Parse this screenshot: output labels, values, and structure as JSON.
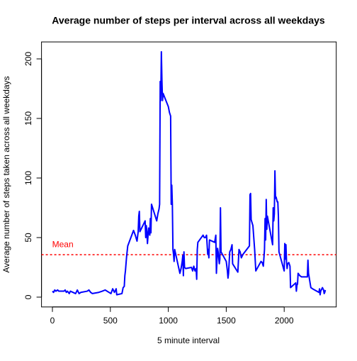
{
  "chart_data": {
    "type": "line",
    "title": "Average number of steps per interval across all weekdays",
    "x_label": "5 minute interval",
    "y_label": "Average number of steps taken across all weekdays",
    "x": [
      0,
      10,
      20,
      30,
      45,
      55,
      100,
      110,
      120,
      130,
      145,
      155,
      200,
      215,
      230,
      245,
      300,
      315,
      330,
      345,
      400,
      430,
      455,
      505,
      520,
      535,
      545,
      550,
      555,
      600,
      610,
      620,
      625,
      630,
      640,
      650,
      700,
      715,
      730,
      740,
      745,
      750,
      755,
      800,
      805,
      810,
      815,
      820,
      830,
      840,
      845,
      850,
      855,
      900,
      910,
      920,
      925,
      930,
      935,
      940,
      945,
      950,
      955,
      1000,
      1010,
      1020,
      1025,
      1030,
      1035,
      1040,
      1045,
      1050,
      1055,
      1100,
      1110,
      1120,
      1125,
      1130,
      1135,
      1140,
      1150,
      1200,
      1210,
      1220,
      1230,
      1240,
      1245,
      1250,
      1255,
      1300,
      1310,
      1320,
      1330,
      1340,
      1345,
      1350,
      1355,
      1400,
      1410,
      1415,
      1420,
      1425,
      1430,
      1440,
      1445,
      1450,
      1455,
      1500,
      1510,
      1515,
      1520,
      1530,
      1540,
      1550,
      1555,
      1600,
      1610,
      1620,
      1630,
      1645,
      1700,
      1705,
      1710,
      1715,
      1730,
      1745,
      1755,
      1800,
      1810,
      1820,
      1830,
      1835,
      1840,
      1845,
      1850,
      1855,
      1900,
      1905,
      1910,
      1915,
      1920,
      1925,
      1930,
      1940,
      1945,
      1950,
      1955,
      2000,
      2005,
      2010,
      2015,
      2020,
      2025,
      2030,
      2040,
      2050,
      2055,
      2100,
      2105,
      2110,
      2115,
      2120,
      2135,
      2150,
      2200,
      2205,
      2210,
      2215,
      2230,
      2245,
      2300,
      2305,
      2310,
      2315,
      2330,
      2340,
      2345,
      2350,
      2355
    ],
    "series": [
      {
        "color": "#0000ff",
        "values": [
          5,
          4,
          6,
          5,
          6,
          5,
          5,
          6,
          4,
          5,
          3,
          5,
          3,
          6,
          3,
          4,
          5,
          6,
          4,
          3,
          4,
          5,
          6,
          3,
          7,
          4,
          6,
          7,
          2,
          3,
          8,
          9,
          18,
          22,
          34,
          43,
          56,
          52,
          47,
          55,
          68,
          72,
          55,
          64,
          50,
          60,
          55,
          45,
          58,
          52,
          66,
          54,
          78,
          64,
          70,
          74,
          78,
          181,
          165,
          206,
          182,
          165,
          171,
          160,
          155,
          152,
          78,
          94,
          78,
          40,
          36,
          30,
          40,
          20,
          24,
          30,
          35,
          18,
          38,
          25,
          24,
          25,
          22,
          26,
          22,
          24,
          15,
          40,
          46,
          52,
          50,
          50,
          52,
          36,
          40,
          33,
          48,
          46,
          52,
          20,
          31,
          41,
          38,
          28,
          32,
          75,
          38,
          30,
          22,
          16,
          20,
          38,
          40,
          44,
          28,
          21,
          40,
          38,
          33,
          36,
          43,
          86,
          87,
          65,
          60,
          40,
          22,
          30,
          29,
          26,
          40,
          66,
          48,
          82,
          57,
          68,
          44,
          75,
          64,
          70,
          106,
          83,
          84,
          80,
          80,
          68,
          38,
          22,
          45,
          32,
          44,
          30,
          24,
          28,
          29,
          26,
          8,
          12,
          5,
          10,
          11,
          20,
          18,
          17,
          17,
          31,
          20,
          17,
          8,
          7,
          4,
          7,
          2,
          5,
          8,
          6,
          3,
          4,
          6
        ]
      }
    ],
    "hline": {
      "value": 35.6,
      "color": "#ff0000"
    },
    "annotation": "Mean",
    "xlim": [
      -94.2,
      2449.2
    ],
    "ylim": [
      -8.24,
      214.24
    ],
    "xticks": [
      0,
      500,
      1000,
      1500,
      2000
    ],
    "yticks": [
      0,
      50,
      100,
      150,
      200
    ]
  }
}
